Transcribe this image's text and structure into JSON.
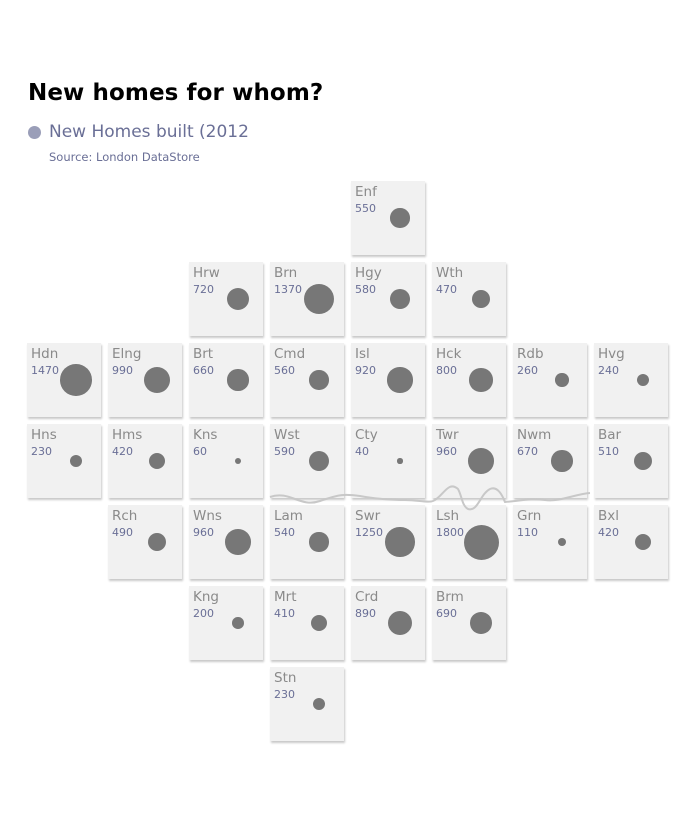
{
  "title": "New homes for whom?",
  "legend": {
    "label": "New Homes built (2012",
    "color": "#9a9eb8"
  },
  "source": "Source: London DataStore",
  "colors": {
    "tile": "#f1f1f1",
    "circle": "#777777",
    "code": "#8a8a8a",
    "value": "#6a6f96",
    "river": "#c8c8c8"
  },
  "chart_data": {
    "type": "tile-map",
    "max_value": 1800,
    "boroughs": [
      {
        "code": "Enf",
        "value": 550,
        "row": 0,
        "col": 4
      },
      {
        "code": "Hrw",
        "value": 720,
        "row": 1,
        "col": 2
      },
      {
        "code": "Brn",
        "value": 1370,
        "row": 1,
        "col": 3
      },
      {
        "code": "Hgy",
        "value": 580,
        "row": 1,
        "col": 4
      },
      {
        "code": "Wth",
        "value": 470,
        "row": 1,
        "col": 5
      },
      {
        "code": "Hdn",
        "value": 1470,
        "row": 2,
        "col": 0
      },
      {
        "code": "Elng",
        "value": 990,
        "row": 2,
        "col": 1
      },
      {
        "code": "Brt",
        "value": 660,
        "row": 2,
        "col": 2
      },
      {
        "code": "Cmd",
        "value": 560,
        "row": 2,
        "col": 3
      },
      {
        "code": "Isl",
        "value": 920,
        "row": 2,
        "col": 4
      },
      {
        "code": "Hck",
        "value": 800,
        "row": 2,
        "col": 5
      },
      {
        "code": "Rdb",
        "value": 260,
        "row": 2,
        "col": 6
      },
      {
        "code": "Hvg",
        "value": 240,
        "row": 2,
        "col": 7
      },
      {
        "code": "Hns",
        "value": 230,
        "row": 3,
        "col": 0
      },
      {
        "code": "Hms",
        "value": 420,
        "row": 3,
        "col": 1
      },
      {
        "code": "Kns",
        "value": 60,
        "row": 3,
        "col": 2
      },
      {
        "code": "Wst",
        "value": 590,
        "row": 3,
        "col": 3
      },
      {
        "code": "Cty",
        "value": 40,
        "row": 3,
        "col": 4
      },
      {
        "code": "Twr",
        "value": 960,
        "row": 3,
        "col": 5
      },
      {
        "code": "Nwm",
        "value": 670,
        "row": 3,
        "col": 6
      },
      {
        "code": "Bar",
        "value": 510,
        "row": 3,
        "col": 7
      },
      {
        "code": "Rch",
        "value": 490,
        "row": 4,
        "col": 1
      },
      {
        "code": "Wns",
        "value": 960,
        "row": 4,
        "col": 2
      },
      {
        "code": "Lam",
        "value": 540,
        "row": 4,
        "col": 3
      },
      {
        "code": "Swr",
        "value": 1250,
        "row": 4,
        "col": 4
      },
      {
        "code": "Lsh",
        "value": 1800,
        "row": 4,
        "col": 5
      },
      {
        "code": "Grn",
        "value": 110,
        "row": 4,
        "col": 6
      },
      {
        "code": "Bxl",
        "value": 420,
        "row": 4,
        "col": 7
      },
      {
        "code": "Kng",
        "value": 200,
        "row": 5,
        "col": 2
      },
      {
        "code": "Mrt",
        "value": 410,
        "row": 5,
        "col": 3
      },
      {
        "code": "Crd",
        "value": 890,
        "row": 5,
        "col": 4
      },
      {
        "code": "Brm",
        "value": 690,
        "row": 5,
        "col": 5
      },
      {
        "code": "Stn",
        "value": 230,
        "row": 6,
        "col": 3
      }
    ]
  }
}
